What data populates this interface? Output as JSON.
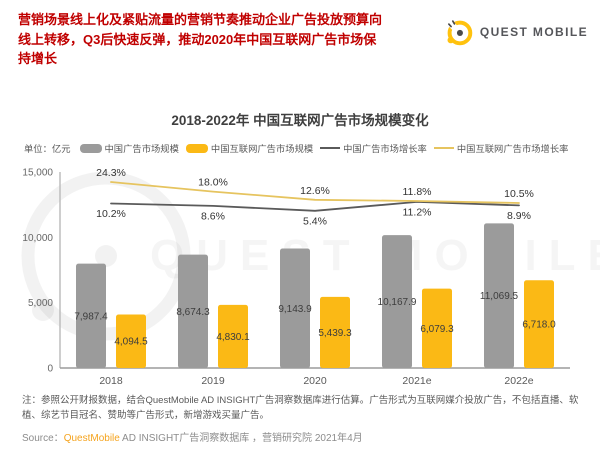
{
  "header": {
    "lines": [
      "营销场景线上化及紧贴流量的营销节奏推动企业广告投放预算向",
      "线上转移，Q3后快速反弹，推动2020年中国互联网广告市场保",
      "持增长"
    ],
    "color": "#c00000"
  },
  "logo": {
    "text": "QUEST MOBILE",
    "icon": "questmobile-logo",
    "yellow": "#ffc20e",
    "text_color": "#55565a"
  },
  "watermark": {
    "text": "QUEST MOBILE"
  },
  "chart_data": {
    "type": "bar+line",
    "title": "2018-2022年 中国互联网广告市场规模变化",
    "unit_label": "单位：亿元",
    "categories": [
      "2018",
      "2019",
      "2020",
      "2021e",
      "2022e"
    ],
    "bar_series": [
      {
        "name": "中国广告市场规模",
        "color": "#9b9b9b",
        "values": [
          7987.4,
          8674.3,
          9143.9,
          10167.9,
          11069.5
        ],
        "labels": [
          "7,987.4",
          "8,674.3",
          "9,143.9",
          "10,167.9",
          "11,069.5"
        ]
      },
      {
        "name": "中国互联网广告市场规模",
        "color": "#fbb915",
        "values": [
          4094.5,
          4830.1,
          5439.3,
          6079.3,
          6718.0
        ],
        "labels": [
          "4,094.5",
          "4,830.1",
          "5,439.3",
          "6,079.3",
          "6,718.0"
        ]
      }
    ],
    "line_series": [
      {
        "name": "中国广告市场增长率",
        "color": "#5a5a5a",
        "values": [
          10.2,
          8.6,
          5.4,
          11.2,
          8.9
        ],
        "labels": [
          "10.2%",
          "8.6%",
          "5.4%",
          "11.2%",
          "8.9%"
        ],
        "label_side": "below"
      },
      {
        "name": "中国互联网广告市场增长率",
        "color": "#e6c45f",
        "values": [
          24.3,
          18.0,
          12.6,
          11.8,
          10.5
        ],
        "labels": [
          "24.3%",
          "18.0%",
          "12.6%",
          "11.8%",
          "10.5%"
        ],
        "label_side": "above"
      }
    ],
    "y_axis": {
      "tick_labels": [
        "0",
        "5,000",
        "10,000",
        "15,000"
      ],
      "tick_values": [
        0,
        5000,
        10000,
        15000
      ]
    },
    "ylim": [
      0,
      15000
    ],
    "grid": false,
    "legend_position": "top"
  },
  "footer": {
    "note": "注：参照公开财报数据，结合QuestMobile AD INSIGHT广告洞察数据库进行估算。广告形式为互联网媒介投放广告，不包括直播、软植、综艺节目冠名、赞助等广告形式，新增游戏买量广告。",
    "source_prefix": "Source：",
    "source_brand": "QuestMobile",
    "source_suffix": " AD INSIGHT广告洞察数据库 ，营销研究院 2021年4月"
  }
}
